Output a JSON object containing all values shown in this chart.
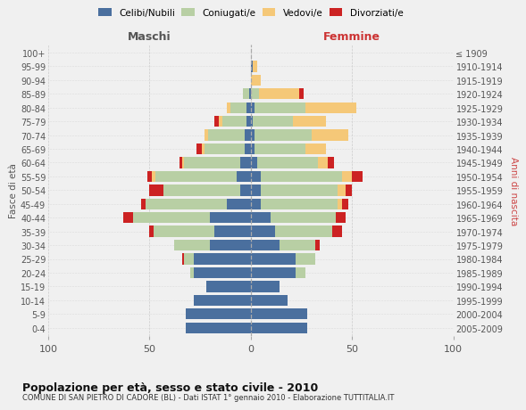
{
  "age_groups": [
    "0-4",
    "5-9",
    "10-14",
    "15-19",
    "20-24",
    "25-29",
    "30-34",
    "35-39",
    "40-44",
    "45-49",
    "50-54",
    "55-59",
    "60-64",
    "65-69",
    "70-74",
    "75-79",
    "80-84",
    "85-89",
    "90-94",
    "95-99",
    "100+"
  ],
  "birth_years": [
    "2005-2009",
    "2000-2004",
    "1995-1999",
    "1990-1994",
    "1985-1989",
    "1980-1984",
    "1975-1979",
    "1970-1974",
    "1965-1969",
    "1960-1964",
    "1955-1959",
    "1950-1954",
    "1945-1949",
    "1940-1944",
    "1935-1939",
    "1930-1934",
    "1925-1929",
    "1920-1924",
    "1915-1919",
    "1910-1914",
    "≤ 1909"
  ],
  "maschi": {
    "celibi": [
      32,
      32,
      28,
      22,
      28,
      28,
      20,
      18,
      20,
      12,
      5,
      7,
      5,
      3,
      3,
      2,
      2,
      1,
      0,
      0,
      0
    ],
    "coniugati": [
      0,
      0,
      0,
      0,
      2,
      5,
      18,
      30,
      38,
      40,
      38,
      40,
      28,
      20,
      18,
      12,
      8,
      3,
      0,
      0,
      0
    ],
    "vedovi": [
      0,
      0,
      0,
      0,
      0,
      0,
      0,
      0,
      0,
      0,
      0,
      2,
      1,
      1,
      2,
      2,
      2,
      0,
      0,
      0,
      0
    ],
    "divorziati": [
      0,
      0,
      0,
      0,
      0,
      1,
      0,
      2,
      5,
      2,
      7,
      2,
      1,
      3,
      0,
      2,
      0,
      0,
      0,
      0,
      0
    ]
  },
  "femmine": {
    "nubili": [
      28,
      28,
      18,
      14,
      22,
      22,
      14,
      12,
      10,
      5,
      5,
      5,
      3,
      2,
      2,
      1,
      2,
      0,
      0,
      1,
      0
    ],
    "coniugate": [
      0,
      0,
      0,
      0,
      5,
      10,
      18,
      28,
      32,
      38,
      38,
      40,
      30,
      25,
      28,
      20,
      25,
      4,
      0,
      0,
      0
    ],
    "vedove": [
      0,
      0,
      0,
      0,
      0,
      0,
      0,
      0,
      0,
      2,
      4,
      5,
      5,
      10,
      18,
      16,
      25,
      20,
      5,
      2,
      0
    ],
    "divorziate": [
      0,
      0,
      0,
      0,
      0,
      0,
      2,
      5,
      5,
      3,
      3,
      5,
      3,
      0,
      0,
      0,
      0,
      2,
      0,
      0,
      0
    ]
  },
  "colors": {
    "celibi": "#4a6f9e",
    "coniugati": "#b8cfa4",
    "vedovi": "#f5c878",
    "divorziati": "#cc2222"
  },
  "title_main": "Popolazione per età, sesso e stato civile - 2010",
  "title_sub": "COMUNE DI SAN PIETRO DI CADORE (BL) - Dati ISTAT 1° gennaio 2010 - Elaborazione TUTTITALIA.IT",
  "header_left": "Maschi",
  "header_right": "Femmine",
  "ylabel_left": "Fasce di età",
  "ylabel_right": "Anni di nascita",
  "legend_labels": [
    "Celibi/Nubili",
    "Coniugati/e",
    "Vedovi/e",
    "Divorziati/e"
  ],
  "xlim": 100,
  "bg_color": "#f0f0f0"
}
